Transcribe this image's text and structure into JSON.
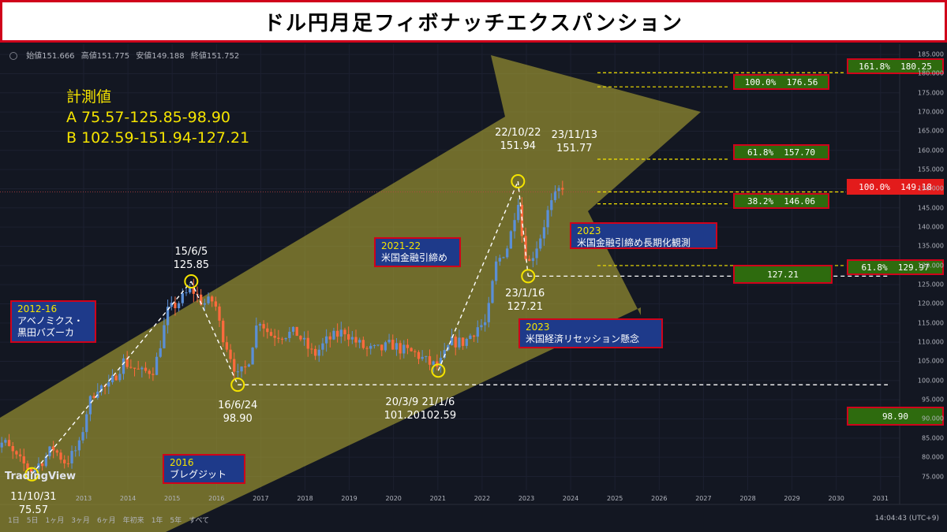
{
  "title": "ドル円月足フィボナッチエクスパンション",
  "ohlc": {
    "open": "始値151.666",
    "high": "高値151.775",
    "low": "安値149.188",
    "close": "終値151.752"
  },
  "measure": {
    "heading": "計測値",
    "a": "A 75.57-125.85-98.90",
    "b": "B 102.59-151.94-127.21"
  },
  "colors": {
    "up": "#5b8fd6",
    "down": "#ff6a3d",
    "arrow": "#a9a232",
    "dash": "#ffffff",
    "fib": "#f5e400"
  },
  "points": [
    {
      "date": "11/10/31",
      "value": "75.57",
      "t": 2011.83,
      "v": 75.57,
      "label_pos": "below"
    },
    {
      "date": "15/6/5",
      "value": "125.85",
      "t": 2015.43,
      "v": 125.85,
      "label_pos": "above"
    },
    {
      "date": "16/6/24",
      "value": "98.90",
      "t": 2016.48,
      "v": 98.9,
      "label_pos": "below"
    },
    {
      "date": "20/3/9",
      "value": "101.20",
      "t": 2020.19,
      "v": 101.2,
      "label_pos": "below"
    },
    {
      "date": "21/1/6",
      "value": "102.59",
      "t": 2021.01,
      "v": 102.59,
      "label_pos": "below"
    },
    {
      "date": "22/10/22",
      "value": "151.94",
      "t": 2022.81,
      "v": 151.94,
      "label_pos": "above"
    },
    {
      "date": "23/1/16",
      "value": "127.21",
      "t": 2023.04,
      "v": 127.21,
      "label_pos": "below"
    },
    {
      "date": "23/11/13",
      "value": "151.77",
      "t": 2023.87,
      "v": 151.77,
      "label_pos": "above"
    }
  ],
  "events": [
    {
      "year": "2012-16",
      "text": "アベノミクス・\n黒田バズーカ"
    },
    {
      "year": "2016",
      "text": "ブレグジット"
    },
    {
      "year": "2021-22",
      "text": "米国金融引締め"
    },
    {
      "year": "2023",
      "text": "米国金融引締め長期化観測"
    },
    {
      "year": "2023",
      "text": "米国経済リセッション懸念"
    }
  ],
  "fib_labels": [
    {
      "text": "161.8%  180.25",
      "value": 180.25,
      "style": "green"
    },
    {
      "text": "100.0%  176.56",
      "value": 176.56,
      "style": "green"
    },
    {
      "text": "61.8%  157.70",
      "value": 157.7,
      "style": "green"
    },
    {
      "text": "100.0%  149.18",
      "value": 149.18,
      "style": "red"
    },
    {
      "text": "38.2%  146.06",
      "value": 146.06,
      "style": "green"
    },
    {
      "text": "61.8%  129.97",
      "value": 129.97,
      "style": "green"
    },
    {
      "text": "127.21",
      "value": 127.21,
      "style": "green"
    },
    {
      "text": "98.90",
      "value": 98.9,
      "style": "green"
    }
  ],
  "chart_data": {
    "type": "candlestick",
    "interval": "monthly",
    "title": "ドル円月足フィボナッチエクスパンション",
    "ylim": [
      72.0,
      186.5
    ],
    "xlim": [
      2011.8,
      2031.2
    ],
    "y_ticks": [
      "75.000",
      "80.000",
      "85.000",
      "90.000",
      "95.000",
      "100.000",
      "105.000",
      "110.000",
      "115.000",
      "120.000",
      "125.000",
      "130.000",
      "135.000",
      "140.000",
      "145.000",
      "150.000",
      "155.000",
      "160.000",
      "165.000",
      "170.000",
      "175.000",
      "180.000",
      "185.000"
    ],
    "x_ticks": [
      "2013",
      "2014",
      "2015",
      "2016",
      "2017",
      "2018",
      "2019",
      "2020",
      "2021",
      "2022",
      "2023",
      "2024",
      "2025",
      "2026",
      "2027",
      "2028",
      "2029",
      "2030",
      "2031"
    ],
    "path": [
      [
        2010.9,
        82.0
      ],
      [
        2011.2,
        84.0
      ],
      [
        2011.5,
        79.5
      ],
      [
        2011.83,
        76.5
      ],
      [
        2012.1,
        79.5
      ],
      [
        2012.3,
        82.5
      ],
      [
        2012.6,
        78.5
      ],
      [
        2012.9,
        83.0
      ],
      [
        2013.1,
        93.5
      ],
      [
        2013.3,
        98.5
      ],
      [
        2013.55,
        98.0
      ],
      [
        2013.9,
        105.0
      ],
      [
        2014.3,
        102.0
      ],
      [
        2014.6,
        103.0
      ],
      [
        2014.9,
        118.0
      ],
      [
        2015.15,
        120.5
      ],
      [
        2015.43,
        124.0
      ],
      [
        2015.7,
        120.0
      ],
      [
        2015.95,
        121.0
      ],
      [
        2016.1,
        113.0
      ],
      [
        2016.3,
        107.0
      ],
      [
        2016.48,
        101.0
      ],
      [
        2016.7,
        104.0
      ],
      [
        2016.95,
        116.5
      ],
      [
        2017.2,
        112.0
      ],
      [
        2017.5,
        112.0
      ],
      [
        2017.8,
        112.5
      ],
      [
        2018.2,
        106.5
      ],
      [
        2018.5,
        110.5
      ],
      [
        2018.9,
        113.0
      ],
      [
        2019.1,
        110.5
      ],
      [
        2019.4,
        108.0
      ],
      [
        2019.7,
        108.0
      ],
      [
        2019.95,
        109.5
      ],
      [
        2020.19,
        108.0
      ],
      [
        2020.5,
        107.0
      ],
      [
        2020.8,
        104.5
      ],
      [
        2021.01,
        103.5
      ],
      [
        2021.3,
        110.0
      ],
      [
        2021.6,
        110.0
      ],
      [
        2021.9,
        114.0
      ],
      [
        2022.1,
        115.0
      ],
      [
        2022.3,
        130.0
      ],
      [
        2022.6,
        135.5
      ],
      [
        2022.81,
        148.0
      ],
      [
        2022.9,
        138.0
      ],
      [
        2023.04,
        130.0
      ],
      [
        2023.3,
        137.0
      ],
      [
        2023.5,
        144.5
      ],
      [
        2023.7,
        149.0
      ],
      [
        2023.87,
        151.7
      ]
    ],
    "annotations": [
      {
        "date": "11/10/31",
        "value": 75.57
      },
      {
        "date": "15/6/5",
        "value": 125.85
      },
      {
        "date": "16/6/24",
        "value": 98.9
      },
      {
        "date": "20/3/9",
        "value": 101.2
      },
      {
        "date": "21/1/6",
        "value": 102.59
      },
      {
        "date": "22/10/22",
        "value": 151.94
      },
      {
        "date": "23/1/16",
        "value": 127.21
      },
      {
        "date": "23/11/13",
        "value": 151.77
      }
    ],
    "horizontal_levels": [
      180.25,
      176.56,
      157.7,
      149.18,
      146.06,
      129.97,
      127.21,
      98.9
    ]
  },
  "footer": {
    "ranges": [
      "1日",
      "5日",
      "1ヶ月",
      "3ヶ月",
      "6ヶ月",
      "年初来",
      "1年",
      "5年",
      "すべて"
    ],
    "time": "14:04:43 (UTC+9)",
    "logo": "TradingView"
  }
}
